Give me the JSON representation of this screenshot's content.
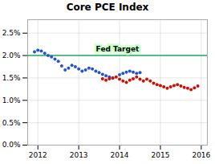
{
  "chart_data": {
    "type": "scatter",
    "title": "Core PCE Index",
    "xlim": [
      2011.75,
      2016.15
    ],
    "ylim": [
      0.0,
      0.028
    ],
    "xticks": [
      2012,
      2013,
      2014,
      2015,
      2016
    ],
    "yticks": [
      {
        "value": 0.0,
        "label": "0.0%"
      },
      {
        "value": 0.005,
        "label": "0.5%"
      },
      {
        "value": 0.01,
        "label": "1.0%"
      },
      {
        "value": 0.015,
        "label": "1.5%"
      },
      {
        "value": 0.02,
        "label": "2.0%"
      },
      {
        "value": 0.025,
        "label": "2.5%"
      }
    ],
    "grid": true,
    "marker": "circle",
    "hline": {
      "value": 0.02,
      "label": "Fed Target",
      "color": "#22aa66",
      "label_background": "#ccffcc"
    },
    "series": [
      {
        "color": "#2255cc",
        "x": [
          2011.917,
          2012.0,
          2012.083,
          2012.167,
          2012.25,
          2012.333,
          2012.417,
          2012.5,
          2012.583,
          2012.667,
          2012.75,
          2012.833,
          2012.917,
          2013.0,
          2013.083,
          2013.167,
          2013.25,
          2013.333,
          2013.417,
          2013.5,
          2013.583,
          2013.667,
          2013.75,
          2013.833,
          2014.0,
          2014.083,
          2014.167,
          2014.25,
          2014.333,
          2014.417,
          2014.5
        ],
        "values": [
          0.0208,
          0.0212,
          0.021,
          0.0205,
          0.02,
          0.0197,
          0.0192,
          0.0187,
          0.0177,
          0.0168,
          0.0172,
          0.0178,
          0.0175,
          0.017,
          0.0165,
          0.0168,
          0.0172,
          0.017,
          0.0165,
          0.0162,
          0.0158,
          0.0155,
          0.0152,
          0.015,
          0.0157,
          0.016,
          0.0163,
          0.0165,
          0.0163,
          0.016,
          0.0162
        ]
      },
      {
        "color": "#cc1100",
        "x": [
          2013.583,
          2013.667,
          2013.75,
          2013.833,
          2013.917,
          2014.0,
          2014.083,
          2014.167,
          2014.25,
          2014.333,
          2014.417,
          2014.5,
          2014.583,
          2014.667,
          2014.75,
          2014.833,
          2014.917,
          2015.0,
          2015.083,
          2015.167,
          2015.25,
          2015.333,
          2015.417,
          2015.5,
          2015.583,
          2015.667,
          2015.75,
          2015.833,
          2015.917
        ],
        "values": [
          0.0148,
          0.0145,
          0.0148,
          0.015,
          0.0152,
          0.0147,
          0.0143,
          0.014,
          0.0145,
          0.0148,
          0.0152,
          0.0147,
          0.0143,
          0.0147,
          0.0143,
          0.0138,
          0.0135,
          0.0133,
          0.013,
          0.0127,
          0.013,
          0.0133,
          0.0135,
          0.0132,
          0.0129,
          0.0127,
          0.0124,
          0.0128,
          0.0132
        ]
      }
    ]
  }
}
